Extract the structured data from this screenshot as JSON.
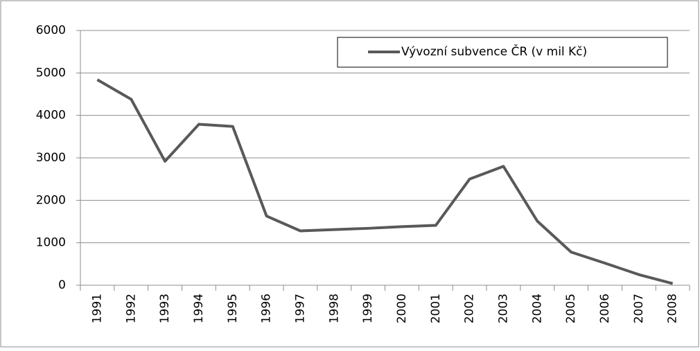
{
  "chart_data": {
    "type": "line",
    "categories": [
      "1991",
      "1992",
      "1993",
      "1994",
      "1995",
      "1996",
      "1997",
      "1998",
      "1999",
      "2000",
      "2001",
      "2002",
      "2003",
      "2004",
      "2005",
      "2006",
      "2007",
      "2008"
    ],
    "series": [
      {
        "name": "Vývozní subvence ČR (v mil Kč)",
        "color": "#595959",
        "values": [
          4840,
          4380,
          2920,
          3790,
          3740,
          1630,
          1280,
          1310,
          1340,
          1380,
          1410,
          2500,
          2800,
          1510,
          780,
          520,
          250,
          40
        ]
      }
    ],
    "ylim": [
      0,
      6000
    ],
    "yticks": [
      0,
      1000,
      2000,
      3000,
      4000,
      5000,
      6000
    ],
    "grid": true,
    "legend": "top-right"
  }
}
